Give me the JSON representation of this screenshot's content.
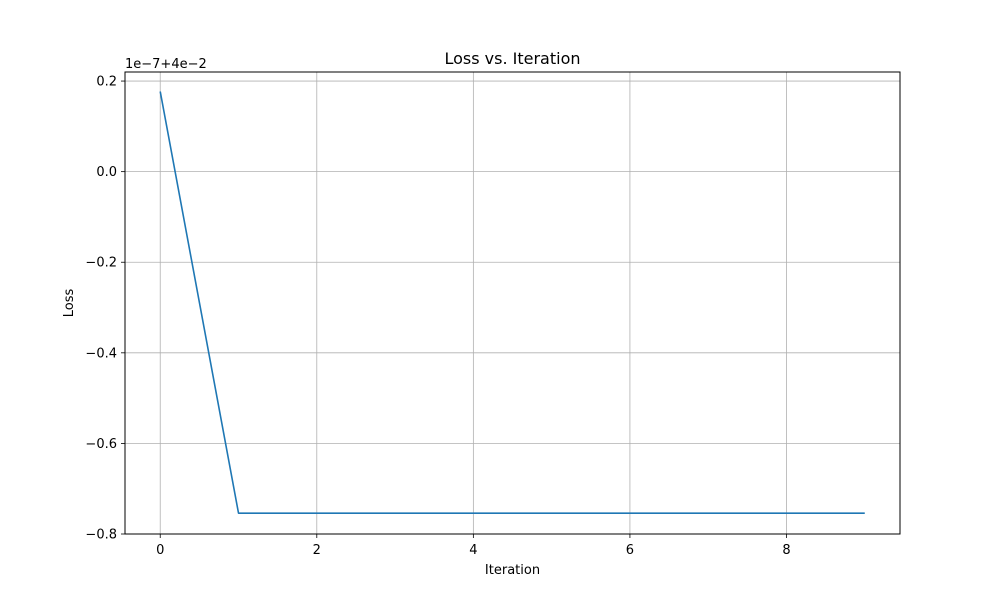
{
  "chart_data": {
    "type": "line",
    "title": "Loss vs. Iteration",
    "xlabel": "Iteration",
    "ylabel": "Loss",
    "y_offset_label": "1e−7+4e−2",
    "xlim": [
      -0.45,
      9.45
    ],
    "ylim": [
      -0.8,
      0.22
    ],
    "x_ticks": [
      0,
      2,
      4,
      6,
      8
    ],
    "x_tick_labels": [
      "0",
      "2",
      "4",
      "6",
      "8"
    ],
    "y_ticks": [
      -0.8,
      -0.6,
      -0.4,
      -0.2,
      0.0,
      0.2
    ],
    "y_tick_labels": [
      "−0.8",
      "−0.6",
      "−0.4",
      "−0.2",
      "0.0",
      "0.2"
    ],
    "grid": true,
    "series": [
      {
        "color": "#1f77b4",
        "x": [
          0,
          1,
          2,
          3,
          4,
          5,
          6,
          7,
          8,
          9
        ],
        "y": [
          0.177,
          -0.754,
          -0.754,
          -0.754,
          -0.754,
          -0.754,
          -0.754,
          -0.754,
          -0.754,
          -0.754
        ]
      }
    ]
  }
}
